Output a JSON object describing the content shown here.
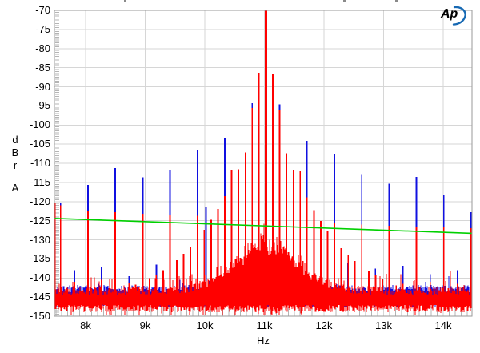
{
  "logo": {
    "text": "Ap",
    "color": "#1769b3"
  },
  "decor": {
    "top_edge_text_remnants": [
      155,
      429,
      494
    ]
  },
  "chart_data": {
    "type": "line",
    "title": "",
    "xlabel": "Hz",
    "ylabel_chars": [
      "d",
      "B",
      "r",
      "A"
    ],
    "xlim": [
      7476,
      14483
    ],
    "ylim": [
      -150,
      -70
    ],
    "grid": true,
    "x_ticks": [
      {
        "f": 8000,
        "label": "8k"
      },
      {
        "f": 9000,
        "label": "9k"
      },
      {
        "f": 10000,
        "label": "10k"
      },
      {
        "f": 11000,
        "label": "11k"
      },
      {
        "f": 12000,
        "label": "12k"
      },
      {
        "f": 13000,
        "label": "13k"
      },
      {
        "f": 14000,
        "label": "14k"
      }
    ],
    "y_ticks": [
      {
        "v": -70,
        "label": "-70"
      },
      {
        "v": -75,
        "label": "-75"
      },
      {
        "v": -80,
        "label": "-80"
      },
      {
        "v": -85,
        "label": "-85"
      },
      {
        "v": -90,
        "label": "-90"
      },
      {
        "v": -95,
        "label": "-95"
      },
      {
        "v": -100,
        "label": "-100"
      },
      {
        "v": -105,
        "label": "-105"
      },
      {
        "v": -110,
        "label": "-110"
      },
      {
        "v": -115,
        "label": "-115"
      },
      {
        "v": -120,
        "label": "-120"
      },
      {
        "v": -125,
        "label": "-125"
      },
      {
        "v": -130,
        "label": "-130"
      },
      {
        "v": -135,
        "label": "-135"
      },
      {
        "v": -140,
        "label": "-140"
      },
      {
        "v": -145,
        "label": "-145"
      },
      {
        "v": -150,
        "label": "-150"
      }
    ],
    "colors": {
      "grid": "#d6d6d6",
      "border": "#9a9a9a",
      "minor_tick": "#b4b4b4",
      "blue": "#1010e0",
      "red": "#ff0000",
      "green": "#00d000"
    },
    "series": [
      {
        "name": "blue-trace",
        "color": "#1010e0",
        "noise_floor": -144.6,
        "spikes": [
          [
            7580,
            -120.4
          ],
          [
            8039,
            -115.7
          ],
          [
            8498,
            -111.3
          ],
          [
            8958,
            -113.7
          ],
          [
            9417,
            -111.8
          ],
          [
            9877,
            -106.6
          ],
          [
            10336,
            -103.5
          ],
          [
            10795,
            -94.3
          ],
          [
            11255,
            -94.6
          ],
          [
            11714,
            -104.1
          ],
          [
            12173,
            -107.6
          ],
          [
            12633,
            -113.0
          ],
          [
            13092,
            -115.3
          ],
          [
            13552,
            -113.6
          ],
          [
            14011,
            -118.3
          ],
          [
            14471,
            -122.8
          ],
          [
            7810,
            -138
          ],
          [
            8269,
            -137
          ],
          [
            8728,
            -139.5
          ],
          [
            9188,
            -136.5
          ],
          [
            9647,
            -135
          ],
          [
            10020,
            -121.5
          ],
          [
            10106,
            -131.5
          ],
          [
            10566,
            -128.5
          ],
          [
            11485,
            -129.5
          ],
          [
            11944,
            -133.5
          ],
          [
            12403,
            -136
          ],
          [
            12862,
            -137.5
          ],
          [
            13322,
            -136.8
          ],
          [
            13781,
            -139
          ],
          [
            14241,
            -138
          ]
        ]
      },
      {
        "name": "red-trace",
        "color": "#ff0000",
        "noise_floor": -146.0,
        "skirt": {
          "center": 11025,
          "amp": 13,
          "sigma": 520
        },
        "main_peak": [
          11025,
          -70
        ],
        "spikes": [
          [
            10910,
            -86.3
          ],
          [
            11140,
            -86.6
          ],
          [
            10795,
            -95.5
          ],
          [
            11255,
            -96.0
          ],
          [
            10680,
            -107.2
          ],
          [
            11370,
            -107.4
          ],
          [
            10565,
            -111.6
          ],
          [
            11485,
            -111.8
          ],
          [
            10450,
            -111.9
          ],
          [
            11600,
            -112.1
          ],
          [
            10335,
            -118.6
          ],
          [
            11715,
            -118.9
          ],
          [
            10220,
            -121.9
          ],
          [
            11830,
            -122.2
          ],
          [
            10105,
            -124.8
          ],
          [
            11945,
            -125.1
          ],
          [
            9990,
            -127.4
          ],
          [
            12060,
            -127.7
          ],
          [
            9875,
            -129.8
          ],
          [
            12175,
            -130.1
          ],
          [
            9760,
            -131.9
          ],
          [
            12290,
            -132.2
          ],
          [
            9645,
            -133.7
          ],
          [
            12405,
            -134.0
          ],
          [
            9530,
            -135.3
          ],
          [
            12520,
            -135.6
          ],
          [
            9415,
            -136.8
          ],
          [
            12635,
            -137.0
          ],
          [
            9300,
            -138.0
          ],
          [
            12750,
            -138.2
          ],
          [
            9185,
            -139.1
          ],
          [
            12865,
            -139.3
          ],
          [
            9070,
            -140.1
          ],
          [
            12980,
            -140.3
          ],
          [
            8955,
            -141.0
          ],
          [
            13095,
            -141.1
          ],
          [
            8840,
            -141.7
          ],
          [
            13210,
            -141.9
          ],
          [
            8725,
            -142.4
          ],
          [
            13325,
            -142.5
          ],
          [
            8610,
            -143.0
          ],
          [
            13440,
            -143.1
          ],
          [
            8495,
            -143.5
          ],
          [
            13555,
            -143.6
          ],
          [
            7484,
            -120.5
          ],
          [
            7580,
            -121.0
          ],
          [
            8039,
            -122.5
          ],
          [
            8498,
            -122.8
          ],
          [
            8958,
            -123.2
          ],
          [
            9417,
            -123.4
          ],
          [
            9877,
            -123.7
          ],
          [
            10336,
            -124.0
          ],
          [
            11714,
            -124.6
          ],
          [
            12173,
            -125.6
          ],
          [
            12633,
            -126.0
          ],
          [
            13092,
            -126.3
          ],
          [
            13552,
            -126.5
          ],
          [
            14011,
            -126.8
          ],
          [
            14471,
            -127.0
          ],
          [
            7810,
            -141
          ],
          [
            8269,
            -140.5
          ],
          [
            8728,
            -141.3
          ],
          [
            9188,
            -140.2
          ],
          [
            9647,
            -137.5
          ],
          [
            12862,
            -141
          ],
          [
            13322,
            -141.5
          ],
          [
            13781,
            -141
          ],
          [
            14241,
            -141.5
          ]
        ]
      },
      {
        "name": "green-reference-line",
        "color": "#00d000",
        "start_db": -124.4,
        "end_db": -128.3
      }
    ]
  }
}
